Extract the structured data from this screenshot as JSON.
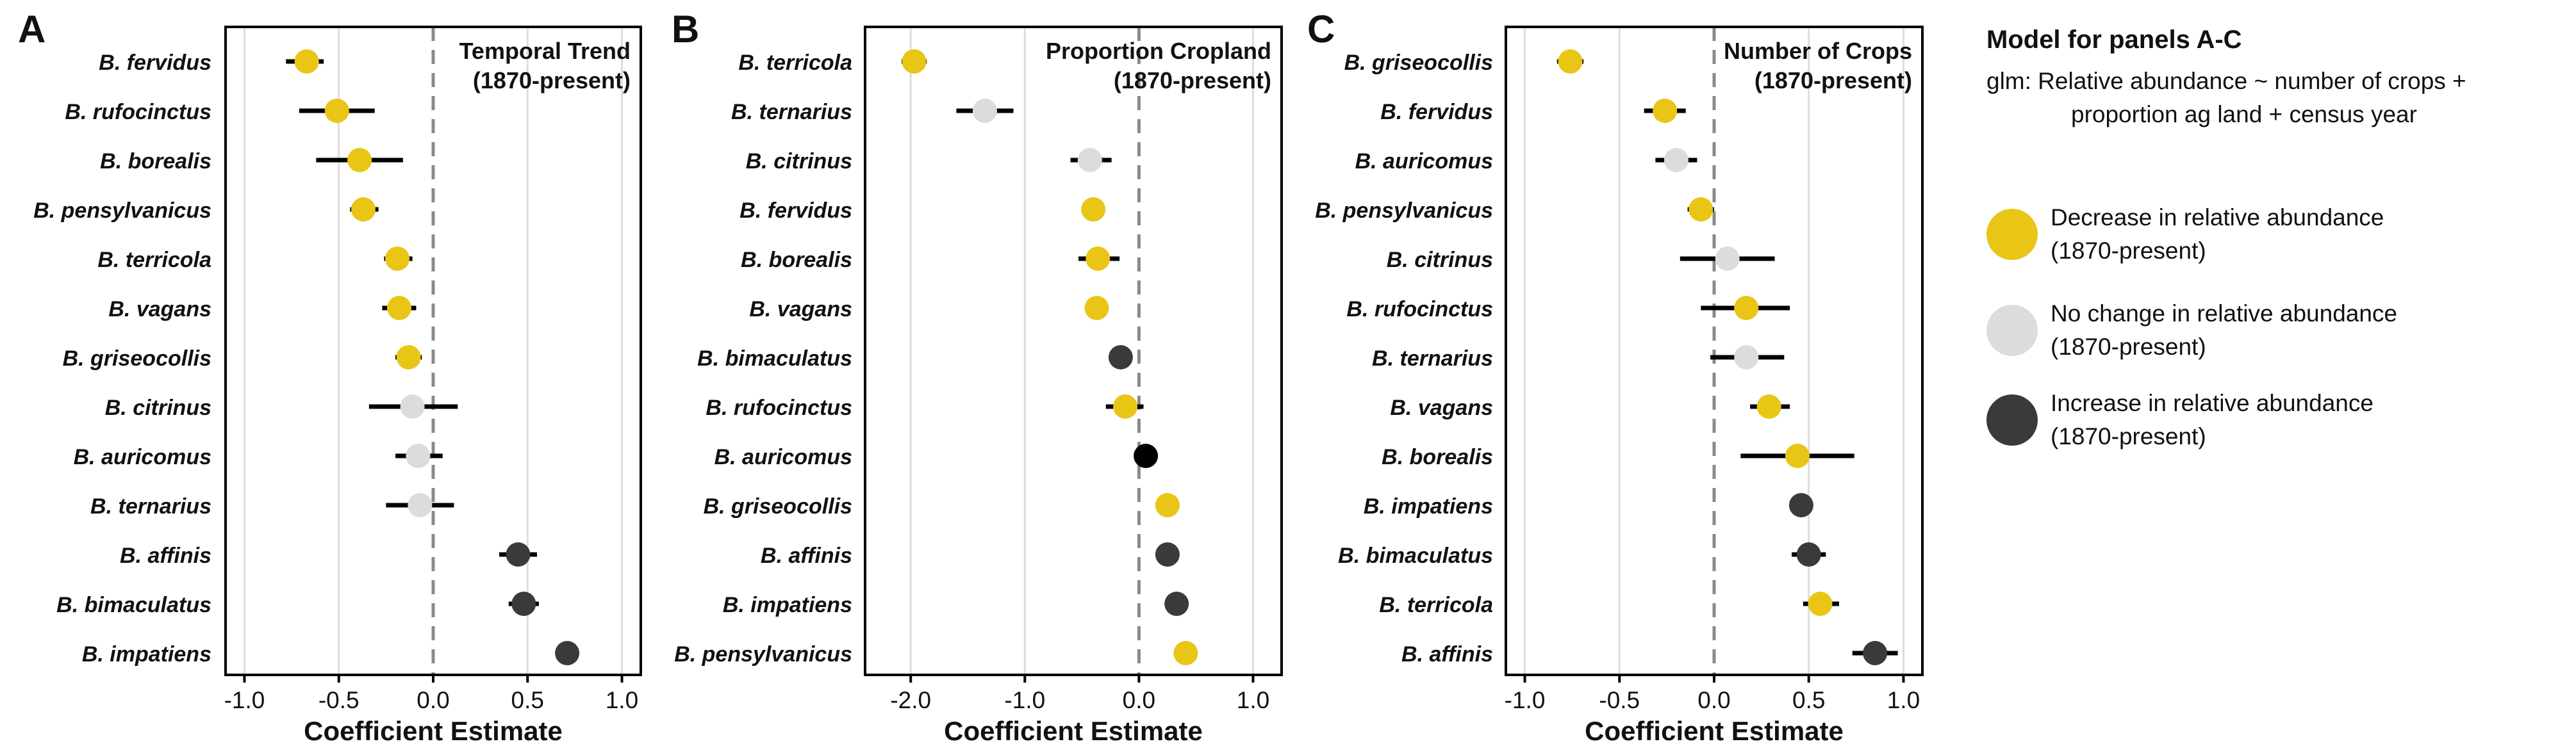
{
  "colors": {
    "decrease": "#e9c516",
    "no_change": "#dcdcdc",
    "increase": "#3a3a3a",
    "black": "#000000"
  },
  "legend": {
    "title": "Model for panels A-C",
    "model_line1": "glm: Relative abundance ~ number of crops +",
    "model_line2": "proportion ag land + census year",
    "items": [
      {
        "key": "decrease",
        "line1": "Decrease in relative abundance",
        "line2": "(1870-present)"
      },
      {
        "key": "no_change",
        "line1": "No change in relative abundance",
        "line2": "(1870-present)"
      },
      {
        "key": "increase",
        "line1": "Increase in relative abundance",
        "line2": "(1870-present)"
      }
    ]
  },
  "chart_data": [
    {
      "type": "scatter",
      "panel_label": "A",
      "title_line1": "Temporal Trend",
      "title_line2": "(1870-present)",
      "xlabel": "Coefficient Estimate",
      "xlim": [
        -1.1,
        1.1
      ],
      "xticks": [
        -1.0,
        -0.5,
        0.0,
        0.5,
        1.0
      ],
      "xticklabels": [
        "-1.0",
        "-0.5",
        "0.0",
        "0.5",
        "1.0"
      ],
      "points": [
        {
          "species": "B. fervidus",
          "estimate": -0.67,
          "low": -0.78,
          "high": -0.58,
          "status": "decrease"
        },
        {
          "species": "B. rufocinctus",
          "estimate": -0.51,
          "low": -0.71,
          "high": -0.31,
          "status": "decrease"
        },
        {
          "species": "B. borealis",
          "estimate": -0.39,
          "low": -0.62,
          "high": -0.16,
          "status": "decrease"
        },
        {
          "species": "B. pensylvanicus",
          "estimate": -0.37,
          "low": -0.44,
          "high": -0.29,
          "status": "decrease"
        },
        {
          "species": "B. terricola",
          "estimate": -0.19,
          "low": -0.26,
          "high": -0.11,
          "status": "decrease"
        },
        {
          "species": "B. vagans",
          "estimate": -0.18,
          "low": -0.27,
          "high": -0.09,
          "status": "decrease"
        },
        {
          "species": "B. griseocollis",
          "estimate": -0.13,
          "low": -0.2,
          "high": -0.06,
          "status": "decrease"
        },
        {
          "species": "B. citrinus",
          "estimate": -0.11,
          "low": -0.34,
          "high": 0.13,
          "status": "no_change"
        },
        {
          "species": "B. auricomus",
          "estimate": -0.08,
          "low": -0.2,
          "high": 0.05,
          "status": "no_change"
        },
        {
          "species": "B. ternarius",
          "estimate": -0.07,
          "low": -0.25,
          "high": 0.11,
          "status": "no_change"
        },
        {
          "species": "B. affinis",
          "estimate": 0.45,
          "low": 0.35,
          "high": 0.55,
          "status": "increase"
        },
        {
          "species": "B. bimaculatus",
          "estimate": 0.48,
          "low": 0.4,
          "high": 0.56,
          "status": "increase"
        },
        {
          "species": "B. impatiens",
          "estimate": 0.71,
          "low": 0.65,
          "high": 0.77,
          "status": "increase"
        }
      ]
    },
    {
      "type": "scatter",
      "panel_label": "B",
      "title_line1": "Proportion Cropland",
      "title_line2": "(1870-present)",
      "xlabel": "Coefficient Estimate",
      "xlim": [
        -2.4,
        1.25
      ],
      "xticks": [
        -2.0,
        -1.0,
        0.0,
        1.0
      ],
      "xticklabels": [
        "-2.0",
        "-1.0",
        "0.0",
        "1.0"
      ],
      "points": [
        {
          "species": "B. terricola",
          "estimate": -1.97,
          "low": -2.08,
          "high": -1.86,
          "status": "decrease"
        },
        {
          "species": "B. ternarius",
          "estimate": -1.35,
          "low": -1.6,
          "high": -1.1,
          "status": "no_change"
        },
        {
          "species": "B. citrinus",
          "estimate": -0.43,
          "low": -0.6,
          "high": -0.24,
          "status": "no_change"
        },
        {
          "species": "B. fervidus",
          "estimate": -0.4,
          "low": -0.47,
          "high": -0.33,
          "status": "decrease"
        },
        {
          "species": "B. borealis",
          "estimate": -0.36,
          "low": -0.53,
          "high": -0.17,
          "status": "decrease"
        },
        {
          "species": "B. vagans",
          "estimate": -0.37,
          "low": -0.44,
          "high": -0.3,
          "status": "decrease"
        },
        {
          "species": "B. bimaculatus",
          "estimate": -0.16,
          "low": -0.22,
          "high": -0.1,
          "status": "increase"
        },
        {
          "species": "B. rufocinctus",
          "estimate": -0.12,
          "low": -0.29,
          "high": 0.04,
          "status": "decrease"
        },
        {
          "species": "B. auricomus",
          "estimate": 0.06,
          "low": 0.0,
          "high": 0.12,
          "status": "black"
        },
        {
          "species": "B. griseocollis",
          "estimate": 0.25,
          "low": 0.19,
          "high": 0.31,
          "status": "decrease"
        },
        {
          "species": "B. affinis",
          "estimate": 0.25,
          "low": 0.19,
          "high": 0.31,
          "status": "increase"
        },
        {
          "species": "B. impatiens",
          "estimate": 0.33,
          "low": 0.27,
          "high": 0.39,
          "status": "increase"
        },
        {
          "species": "B. pensylvanicus",
          "estimate": 0.41,
          "low": 0.35,
          "high": 0.47,
          "status": "decrease"
        }
      ]
    },
    {
      "type": "scatter",
      "panel_label": "C",
      "title_line1": "Number of Crops",
      "title_line2": "(1870-present)",
      "xlabel": "Coefficient Estimate",
      "xlim": [
        -1.1,
        1.1
      ],
      "xticks": [
        -1.0,
        -0.5,
        0.0,
        0.5,
        1.0
      ],
      "xticklabels": [
        "-1.0",
        "-0.5",
        "0.0",
        "0.5",
        "1.0"
      ],
      "points": [
        {
          "species": "B. griseocollis",
          "estimate": -0.76,
          "low": -0.83,
          "high": -0.69,
          "status": "decrease"
        },
        {
          "species": "B. fervidus",
          "estimate": -0.26,
          "low": -0.37,
          "high": -0.15,
          "status": "decrease"
        },
        {
          "species": "B. auricomus",
          "estimate": -0.2,
          "low": -0.31,
          "high": -0.09,
          "status": "no_change"
        },
        {
          "species": "B. pensylvanicus",
          "estimate": -0.07,
          "low": -0.14,
          "high": 0.0,
          "status": "decrease"
        },
        {
          "species": "B. citrinus",
          "estimate": 0.07,
          "low": -0.18,
          "high": 0.32,
          "status": "no_change"
        },
        {
          "species": "B. rufocinctus",
          "estimate": 0.17,
          "low": -0.07,
          "high": 0.4,
          "status": "decrease"
        },
        {
          "species": "B. ternarius",
          "estimate": 0.17,
          "low": -0.02,
          "high": 0.37,
          "status": "no_change"
        },
        {
          "species": "B. vagans",
          "estimate": 0.29,
          "low": 0.19,
          "high": 0.4,
          "status": "decrease"
        },
        {
          "species": "B. borealis",
          "estimate": 0.44,
          "low": 0.14,
          "high": 0.74,
          "status": "decrease"
        },
        {
          "species": "B. impatiens",
          "estimate": 0.46,
          "low": 0.4,
          "high": 0.52,
          "status": "increase"
        },
        {
          "species": "B. bimaculatus",
          "estimate": 0.5,
          "low": 0.41,
          "high": 0.59,
          "status": "increase"
        },
        {
          "species": "B. terricola",
          "estimate": 0.56,
          "low": 0.47,
          "high": 0.66,
          "status": "decrease"
        },
        {
          "species": "B. affinis",
          "estimate": 0.85,
          "low": 0.73,
          "high": 0.97,
          "status": "increase"
        }
      ]
    }
  ]
}
